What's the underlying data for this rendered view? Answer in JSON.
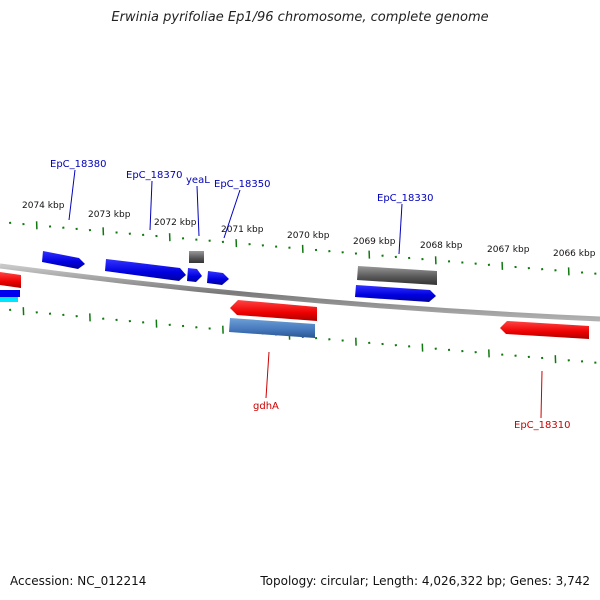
{
  "title": "Erwinia pyrifoliae Ep1/96 chromosome, complete genome",
  "footer": {
    "accession": "Accession: NC_012214",
    "topology": "Topology: circular; Length: 4,026,322 bp; Genes: 3,742"
  },
  "kbp_labels": [
    {
      "text": "2074 kbp",
      "kbp": 2074
    },
    {
      "text": "2073 kbp",
      "kbp": 2073
    },
    {
      "text": "2072 kbp",
      "kbp": 2072
    },
    {
      "text": "2071 kbp",
      "kbp": 2071
    },
    {
      "text": "2070 kbp",
      "kbp": 2070
    },
    {
      "text": "2069 kbp",
      "kbp": 2069
    },
    {
      "text": "2068 kbp",
      "kbp": 2068
    },
    {
      "text": "2067 kbp",
      "kbp": 2067
    },
    {
      "text": "2066 kbp",
      "kbp": 2066
    }
  ],
  "genes": [
    {
      "label": "EpC_18380",
      "strand": "forward",
      "color": "#0000dd"
    },
    {
      "label": "EpC_18370",
      "strand": "forward",
      "color": "#0000dd"
    },
    {
      "label": "yeaL",
      "strand": "forward",
      "color": "#0000dd"
    },
    {
      "label": "EpC_18350",
      "strand": "forward",
      "color": "#0000dd"
    },
    {
      "label": "EpC_18330",
      "strand": "forward",
      "color": "#0000dd"
    },
    {
      "label": "gdhA",
      "strand": "reverse",
      "color": "#dd0000"
    },
    {
      "label": "EpC_18310",
      "strand": "reverse",
      "color": "#dd0000"
    }
  ],
  "colors": {
    "forward_gene": "#0000ee",
    "reverse_gene": "#ee0000",
    "pseudo_gene": "#666666",
    "rna_gene": "#4477bb",
    "backbone": "#888888",
    "tick": "#117711",
    "forward_label": "#0000bb",
    "reverse_label": "#cc0000"
  }
}
